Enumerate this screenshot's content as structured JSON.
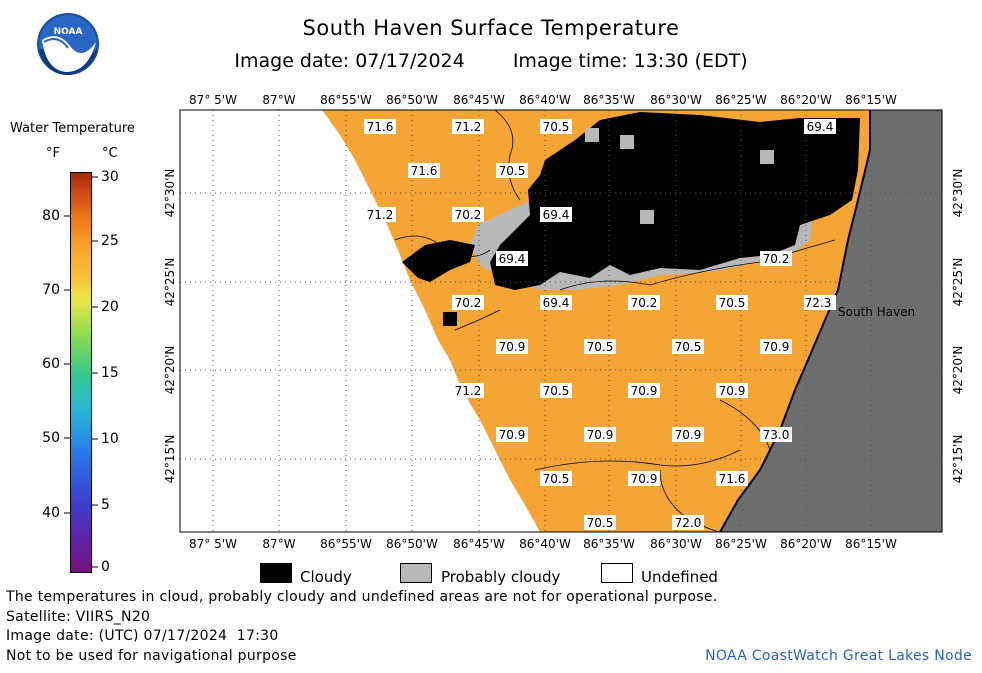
{
  "header": {
    "title": "South Haven Surface Temperature",
    "image_date": "Image date: 07/17/2024",
    "image_time": "Image time: 13:30 (EDT)",
    "logo_text": "NOAA"
  },
  "legend": {
    "title": "Water Temperature",
    "unit_f": "°F",
    "unit_c": "°C",
    "f_ticks": [
      "40",
      "50",
      "60",
      "70",
      "80"
    ],
    "c_ticks": [
      "0",
      "5",
      "10",
      "15",
      "20",
      "25",
      "30"
    ]
  },
  "map": {
    "lon_labels": [
      "87° 5'W",
      "87°W",
      "86°55'W",
      "86°50'W",
      "86°45'W",
      "86°40'W",
      "86°35'W",
      "86°30'W",
      "86°25'W",
      "86°20'W",
      "86°15'W"
    ],
    "lat_labels": [
      "42°30'N",
      "42°25'N",
      "42°20'N",
      "42°15'N"
    ],
    "place_label": "South Haven",
    "temperature_labels": [
      "71.6",
      "71.2",
      "70.5",
      "69.4",
      "71.6",
      "70.5",
      "71.2",
      "70.2",
      "69.4",
      "69.4",
      "70.2",
      "70.2",
      "69.4",
      "70.2",
      "70.5",
      "72.3",
      "70.9",
      "70.5",
      "70.5",
      "70.9",
      "71.2",
      "70.5",
      "70.9",
      "70.9",
      "70.9",
      "70.9",
      "70.9",
      "73.0",
      "70.5",
      "70.9",
      "71.6",
      "70.5",
      "72.0"
    ],
    "colors": {
      "water": "#f5a533",
      "cloud": "#000000",
      "probably_cloudy": "#b8b8b8",
      "land": "#6e6e6e",
      "undefined": "#ffffff"
    }
  },
  "key": {
    "cloudy": "Cloudy",
    "probably_cloudy": "Probably cloudy",
    "undefined": "Undefined"
  },
  "footer": {
    "note": "The temperatures in cloud, probably cloudy and undefined areas are not for operational purpose.",
    "satellite": "Satellite: VIIRS_N20",
    "utc_date": "Image date: (UTC) 07/17/2024  17:30",
    "nav_warning": "Not to be used for navigational purpose",
    "credit": "NOAA CoastWatch Great Lakes Node"
  }
}
